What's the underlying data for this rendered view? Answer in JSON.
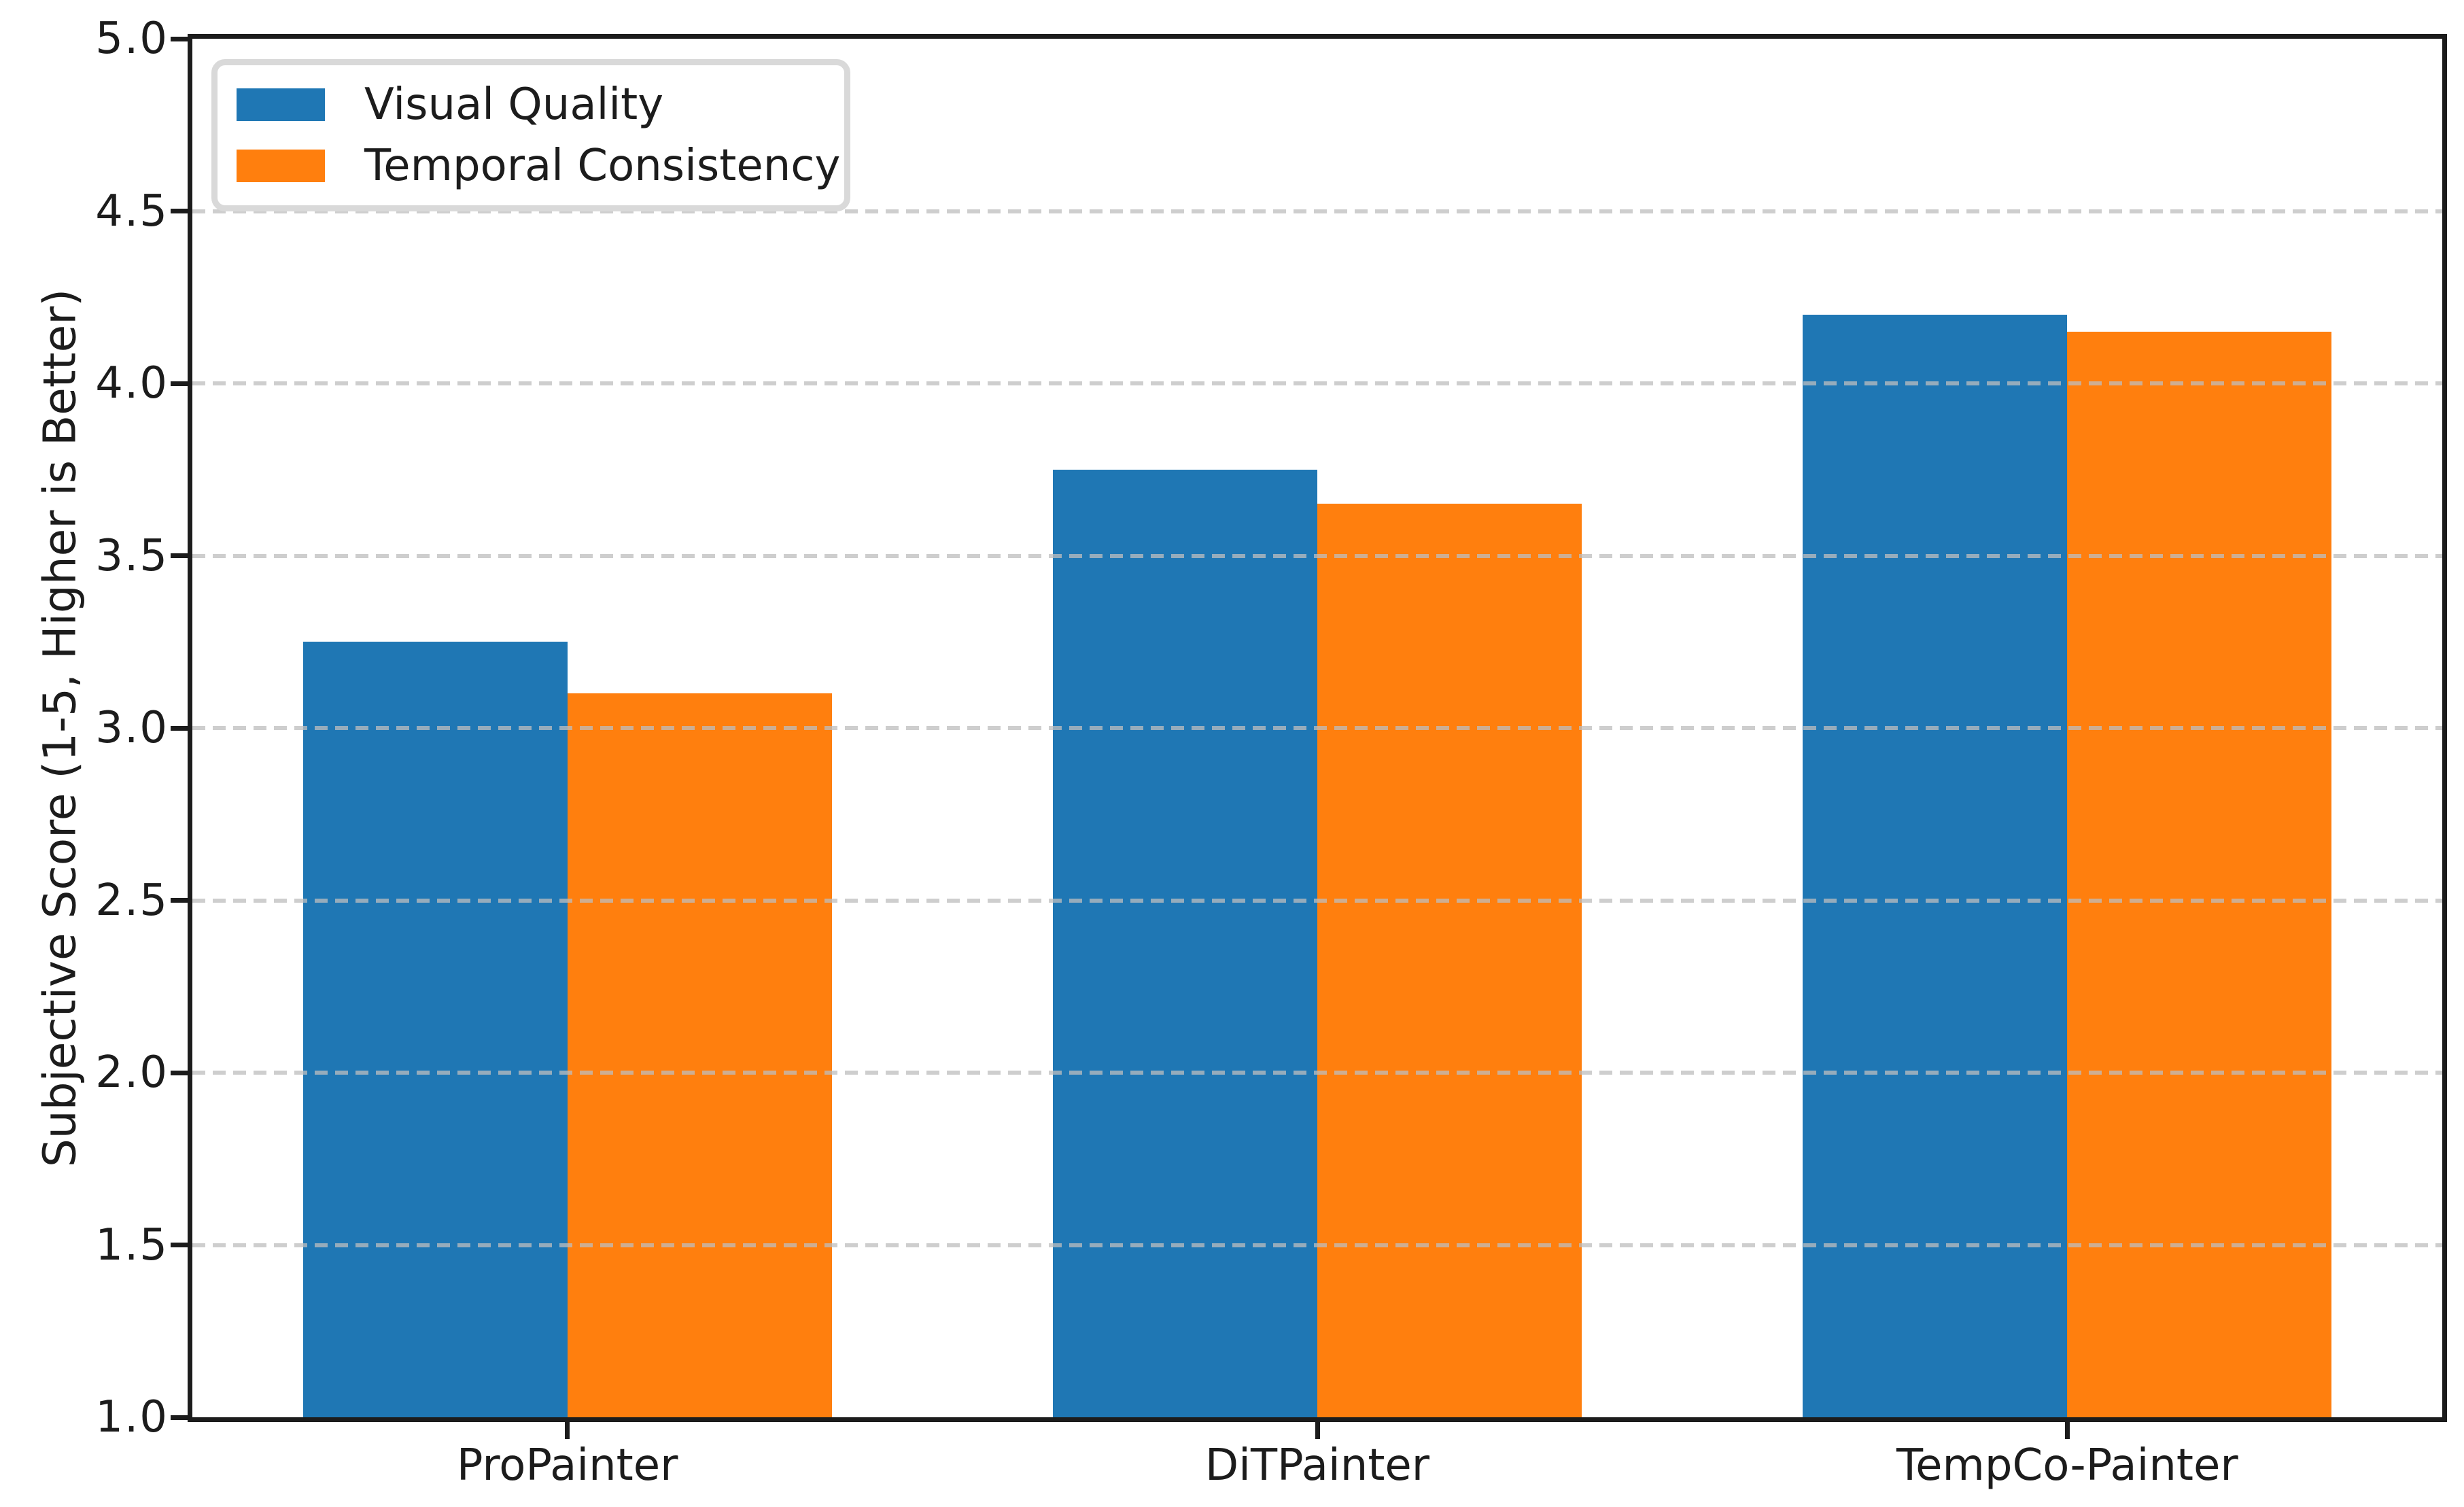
{
  "chart_data": {
    "type": "bar",
    "categories": [
      "ProPainter",
      "DiTPainter",
      "TempCo-Painter"
    ],
    "series": [
      {
        "name": "Visual Quality",
        "color": "#1f77b4",
        "values": [
          3.25,
          3.75,
          4.2
        ]
      },
      {
        "name": "Temporal Consistency",
        "color": "#ff7f0e",
        "values": [
          3.1,
          3.65,
          4.15
        ]
      }
    ],
    "title": "",
    "xlabel": "",
    "ylabel": "Subjective Score (1-5, Higher is Better)",
    "ylim": [
      1.0,
      5.0
    ],
    "ytick_step": 0.5,
    "ytick_labels": [
      "1.0",
      "1.5",
      "2.0",
      "2.5",
      "3.0",
      "3.5",
      "4.0",
      "4.5",
      "5.0"
    ],
    "grid": "horizontal-dashed-over-bars",
    "legend_position": "upper-left",
    "bar_width_fraction": 0.353
  },
  "colors": {
    "background": "#ffffff",
    "spine": "#1c1c1c",
    "grid": "#bebebe",
    "tick_text": "#1c1c1c",
    "legend_border": "#d9d9d9"
  }
}
